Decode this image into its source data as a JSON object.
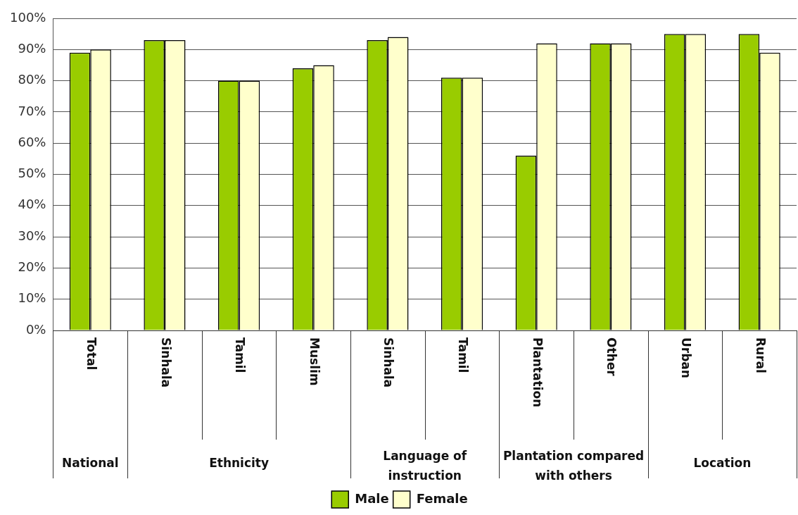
{
  "chart_data": {
    "type": "bar",
    "categories": [
      "Total",
      "Sinhala",
      "Tamil",
      "Muslim",
      "Sinhala",
      "Tamil",
      "Plantation",
      "Other",
      "Urban",
      "Rural"
    ],
    "series": [
      {
        "name": "Male",
        "color": "#99cc00",
        "values": [
          89,
          93,
          80,
          84,
          93,
          81,
          56,
          92,
          95,
          95
        ]
      },
      {
        "name": "Female",
        "color": "#ffffcc",
        "values": [
          90,
          93,
          80,
          85,
          94,
          81,
          92,
          92,
          95,
          89
        ]
      }
    ],
    "ylim": [
      0,
      100
    ],
    "yticks": [
      {
        "value": 0,
        "label": "0%"
      },
      {
        "value": 10,
        "label": "10%"
      },
      {
        "value": 20,
        "label": "20%"
      },
      {
        "value": 30,
        "label": "30%"
      },
      {
        "value": 40,
        "label": "40%"
      },
      {
        "value": 50,
        "label": "50%"
      },
      {
        "value": 60,
        "label": "60%"
      },
      {
        "value": 70,
        "label": "70%"
      },
      {
        "value": 80,
        "label": "80%"
      },
      {
        "value": 90,
        "label": "90%"
      },
      {
        "value": 100,
        "label": "100%"
      }
    ],
    "annotations": [
      "National",
      "Ethnicity",
      "Language of instruction",
      "Plantation compared with others",
      "Location"
    ],
    "grid": "y",
    "legend": "bottom"
  }
}
